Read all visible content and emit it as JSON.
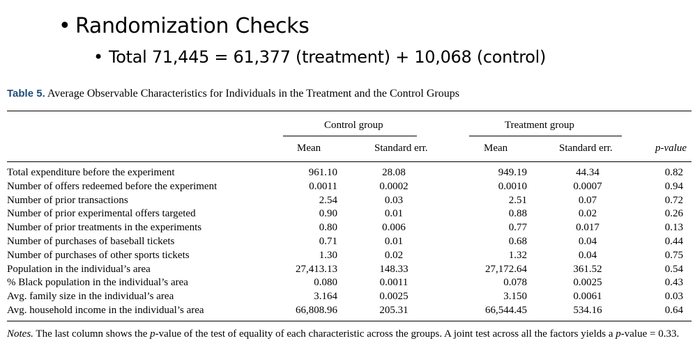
{
  "slide": {
    "bullet_main": "Randomization Checks",
    "bullet_sub": "Total 71,445 = 61,377 (treatment) + 10,068 (control)"
  },
  "table": {
    "label": "Table 5.",
    "caption": "Average Observable Characteristics for Individuals in the Treatment and the Control Groups",
    "group_control": "Control group",
    "group_treatment": "Treatment group",
    "col_mean": "Mean",
    "col_se": "Standard err.",
    "col_p": "p-value",
    "rows": [
      {
        "label": "Total expenditure before the experiment",
        "c_mean": "961.10",
        "c_se": "28.08",
        "t_mean": "949.19",
        "t_se": "44.34",
        "p": "0.82"
      },
      {
        "label": "Number of offers redeemed before the experiment",
        "c_mean": "0.0011",
        "c_se": "0.0002",
        "t_mean": "0.0010",
        "t_se": "0.0007",
        "p": "0.94"
      },
      {
        "label": "Number of prior transactions",
        "c_mean": "2.54",
        "c_se": "0.03",
        "t_mean": "2.51",
        "t_se": "0.07",
        "p": "0.72"
      },
      {
        "label": "Number of prior experimental offers targeted",
        "c_mean": "0.90",
        "c_se": "0.01",
        "t_mean": "0.88",
        "t_se": "0.02",
        "p": "0.26"
      },
      {
        "label": "Number of prior treatments in the experiments",
        "c_mean": "0.80",
        "c_se": "0.006",
        "t_mean": "0.77",
        "t_se": "0.017",
        "p": "0.13"
      },
      {
        "label": "Number of purchases of baseball tickets",
        "c_mean": "0.71",
        "c_se": "0.01",
        "t_mean": "0.68",
        "t_se": "0.04",
        "p": "0.44"
      },
      {
        "label": "Number of purchases of other sports tickets",
        "c_mean": "1.30",
        "c_se": "0.02",
        "t_mean": "1.32",
        "t_se": "0.04",
        "p": "0.75"
      },
      {
        "label": "Population in the individual’s area",
        "c_mean": "27,413.13",
        "c_se": "148.33",
        "t_mean": "27,172.64",
        "t_se": "361.52",
        "p": "0.54"
      },
      {
        "label": "% Black population in the individual’s area",
        "c_mean": "0.080",
        "c_se": "0.0011",
        "t_mean": "0.078",
        "t_se": "0.0025",
        "p": "0.43"
      },
      {
        "label": "Avg. family size in the individual’s area",
        "c_mean": "3.164",
        "c_se": "0.0025",
        "t_mean": "3.150",
        "t_se": "0.0061",
        "p": "0.03"
      },
      {
        "label": "Avg. household income in the individual’s area",
        "c_mean": "66,808.96",
        "c_se": "205.31",
        "t_mean": "66,544.45",
        "t_se": "534.16",
        "p": "0.64"
      }
    ],
    "notes_label": "Notes.",
    "notes_text_1": "The last column shows the ",
    "notes_p": "p",
    "notes_text_2": "-value of the test of equality of each characteristic across the groups. A joint test across all the factors yields a ",
    "notes_p2": "p",
    "notes_text_3": "-value = 0.33."
  }
}
